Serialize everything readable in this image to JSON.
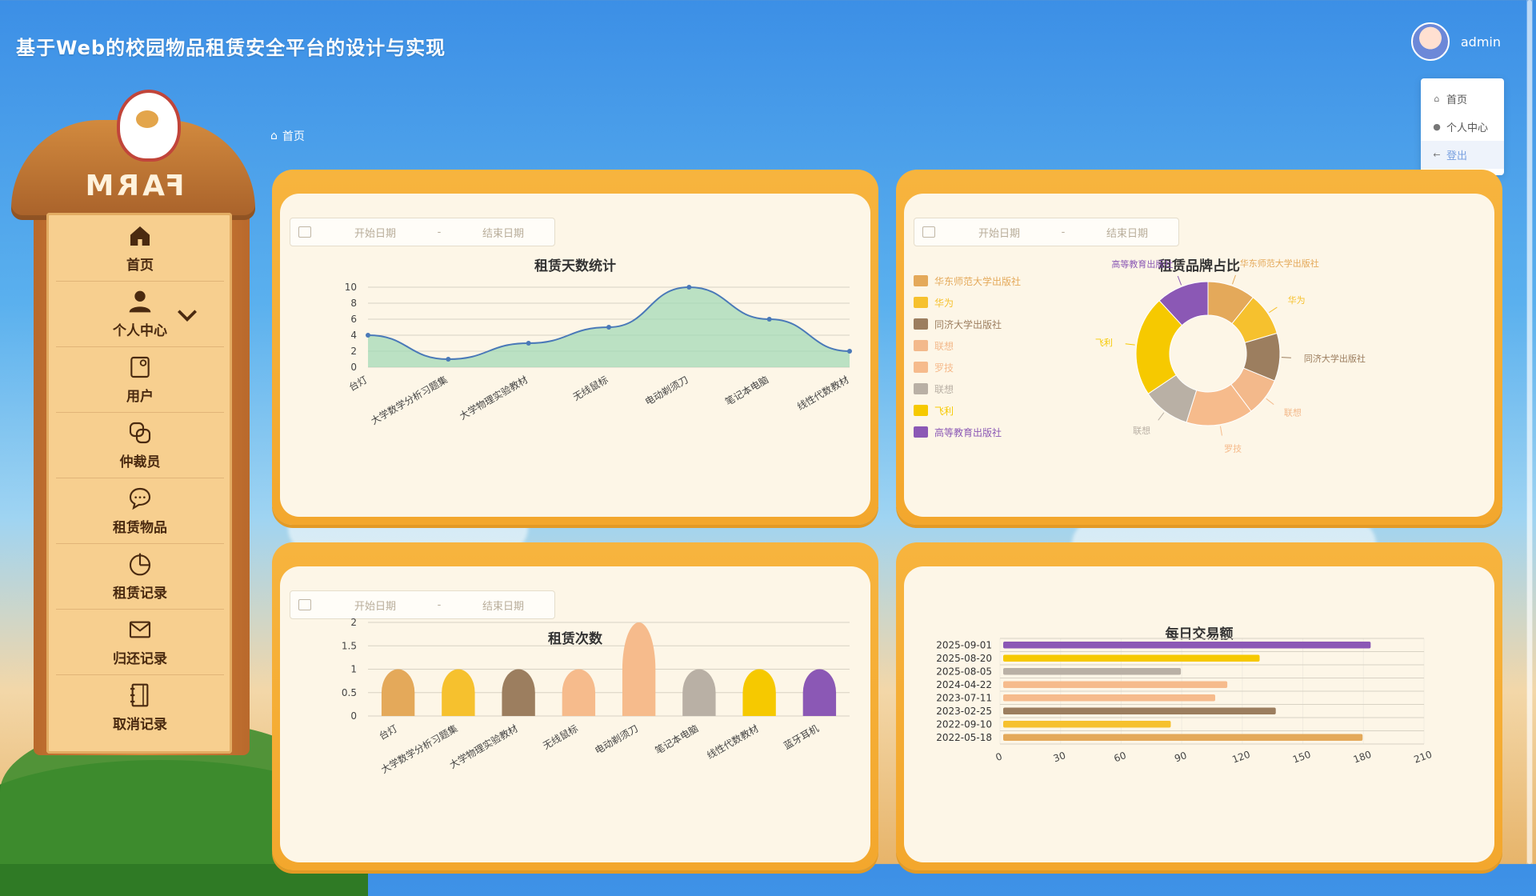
{
  "header": {
    "title": "基于Web的校园物品租赁安全平台的设计与实现"
  },
  "user": {
    "name": "admin",
    "menu": [
      {
        "label": "首页",
        "icon": "home-icon"
      },
      {
        "label": "个人中心",
        "icon": "user-icon"
      },
      {
        "label": "登出",
        "icon": "logout-icon"
      }
    ]
  },
  "breadcrumb": {
    "home": "首页"
  },
  "sidebar": {
    "sign_text": "FARM",
    "items": [
      {
        "label": "首页",
        "icon": "home-icon"
      },
      {
        "label": "个人中心",
        "icon": "user-icon"
      },
      {
        "label": "用户",
        "icon": "user-card-icon"
      },
      {
        "label": "仲裁员",
        "icon": "arbiter-icon"
      },
      {
        "label": "租赁物品",
        "icon": "chat-icon"
      },
      {
        "label": "租赁记录",
        "icon": "pie-icon"
      },
      {
        "label": "归还记录",
        "icon": "mail-icon"
      },
      {
        "label": "取消记录",
        "icon": "notebook-icon"
      }
    ]
  },
  "date_filter": {
    "start_placeholder": "开始日期",
    "end_placeholder": "结束日期",
    "separator": "-"
  },
  "chart_data": [
    {
      "type": "area",
      "title": "租赁天数统计",
      "categories": [
        "台灯",
        "大学数学分析习题集",
        "大学物理实验教材",
        "无线鼠标",
        "电动剃须刀",
        "笔记本电脑",
        "线性代数教材"
      ],
      "values": [
        4,
        1,
        3,
        5,
        10,
        6,
        2
      ],
      "ylim": [
        0,
        10
      ],
      "yticks": [
        0,
        2,
        4,
        6,
        8,
        10
      ],
      "colors": {
        "line": "#4a79b8",
        "fill": "#9ed9b4"
      }
    },
    {
      "type": "pie",
      "title": "租赁品牌占比",
      "donut": true,
      "legend_position": "left",
      "slices": [
        {
          "name": "华东师范大学出版社",
          "value": 10,
          "color": "#e4a95a"
        },
        {
          "name": "华为",
          "value": 9,
          "color": "#f6c12e"
        },
        {
          "name": "同济大学出版社",
          "value": 10,
          "color": "#9c7e5f"
        },
        {
          "name": "联想",
          "value": 8,
          "color": "#f3b98b"
        },
        {
          "name": "罗技",
          "value": 14,
          "color": "#f6bb8c"
        },
        {
          "name": "联想",
          "value": 10,
          "color": "#b9b0a5"
        },
        {
          "name": "飞利",
          "value": 21,
          "color": "#f6c900"
        },
        {
          "name": "高等教育出版社",
          "value": 11,
          "color": "#8b58b5"
        }
      ]
    },
    {
      "type": "bar",
      "title": "租赁次数",
      "categories": [
        "台灯",
        "大学数学分析习题集",
        "大学物理实验教材",
        "无线鼠标",
        "电动剃须刀",
        "笔记本电脑",
        "线性代数教材",
        "蓝牙耳机"
      ],
      "values": [
        1,
        1,
        1,
        1,
        2,
        1,
        1,
        1
      ],
      "ylim": [
        0,
        2
      ],
      "yticks": [
        "0",
        "0.5",
        "1",
        "1.5",
        "2"
      ],
      "colors": [
        "#e4a95a",
        "#f6c12e",
        "#9c7e5f",
        "#f6bb8c",
        "#f6bb8c",
        "#b9b0a5",
        "#f6c900",
        "#8b58b5"
      ]
    },
    {
      "type": "bar",
      "orientation": "horizontal",
      "title": "每日交易额",
      "categories": [
        "2025-09-01",
        "2025-08-20",
        "2025-08-05",
        "2024-04-22",
        "2023-07-11",
        "2023-02-25",
        "2022-09-10",
        "2022-05-18"
      ],
      "values": [
        182,
        127,
        88,
        111,
        105,
        135,
        83,
        178
      ],
      "xlim": [
        0,
        210
      ],
      "xticks": [
        0,
        30,
        60,
        90,
        120,
        150,
        180,
        210
      ],
      "colors": [
        "#8b58b5",
        "#f6c900",
        "#b9b0a5",
        "#f6bb8c",
        "#f6bb8c",
        "#9c7e5f",
        "#f6c12e",
        "#e4a95a"
      ]
    }
  ]
}
